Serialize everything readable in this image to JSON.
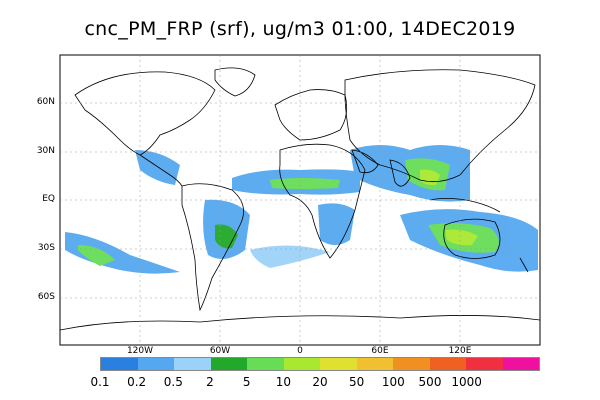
{
  "title": "cnc_PM_FRP (srf), ug/m3 01:00, 14DEC2019",
  "lat_labels": [
    "60N",
    "30N",
    "EQ",
    "30S",
    "60S"
  ],
  "lon_labels": [
    "120W",
    "60W",
    "0",
    "60E",
    "120E"
  ],
  "colorbar": {
    "colors": [
      "#2a80e0",
      "#55a8f0",
      "#9dd2f8",
      "#22a82a",
      "#66dd55",
      "#a8e830",
      "#e0e030",
      "#f0c030",
      "#f09020",
      "#f06020",
      "#f03040",
      "#f010a0"
    ],
    "labels": [
      "0.1",
      "0.2",
      "0.5",
      "2",
      "5",
      "10",
      "20",
      "50",
      "100",
      "500",
      "1000"
    ]
  }
}
